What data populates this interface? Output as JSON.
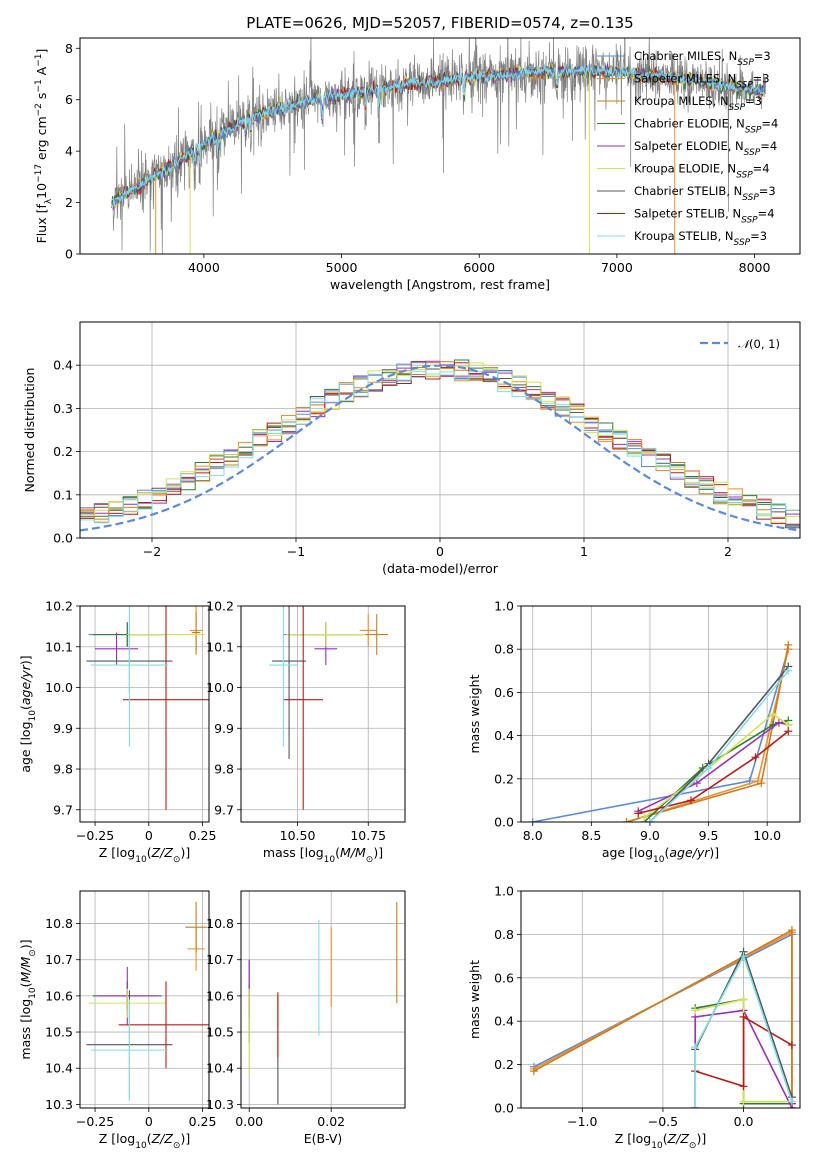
{
  "title": "PLATE=0626, MJD=52057, FIBERID=0574, z=0.135",
  "models": [
    {
      "name": "Chabrier MILES",
      "nssp": "3",
      "color": "#5d8ad8"
    },
    {
      "name": "Salpeter MILES",
      "nssp": "3",
      "color": "#f28e2b"
    },
    {
      "name": "Kroupa MILES",
      "nssp": "3",
      "color": "#c87e1e"
    },
    {
      "name": "Chabrier ELODIE",
      "nssp": "4",
      "color": "#2e7d32"
    },
    {
      "name": "Salpeter ELODIE",
      "nssp": "4",
      "color": "#9b30b0"
    },
    {
      "name": "Kroupa ELODIE",
      "nssp": "4",
      "color": "#d4e157"
    },
    {
      "name": "Chabrier STELIB",
      "nssp": "3",
      "color": "#555555"
    },
    {
      "name": "Salpeter STELIB",
      "nssp": "4",
      "color": "#b71c1c"
    },
    {
      "name": "Kroupa STELIB",
      "nssp": "3",
      "color": "#80deea"
    }
  ],
  "chart_data": [
    {
      "id": "spectrum",
      "type": "line",
      "xlabel": "wavelength [Angstrom, rest frame]",
      "ylabel": "Flux [f_λ 10^-17 erg cm^-2 s^-1 A^-1]",
      "xlim": [
        3100,
        8330
      ],
      "ylim": [
        0,
        8.4
      ],
      "xticks": [
        4000,
        5000,
        6000,
        7000,
        8000
      ],
      "yticks": [
        0,
        2,
        4,
        6,
        8
      ],
      "legend": "top-right",
      "grid": false,
      "data_x_range": [
        3330,
        8080
      ],
      "continuum": [
        [
          3330,
          2.0
        ],
        [
          3600,
          2.9
        ],
        [
          3900,
          3.9
        ],
        [
          4000,
          4.3
        ],
        [
          4300,
          5.2
        ],
        [
          4500,
          5.6
        ],
        [
          5000,
          6.2
        ],
        [
          5500,
          6.6
        ],
        [
          6000,
          6.9
        ],
        [
          6500,
          7.1
        ],
        [
          7000,
          7.1
        ],
        [
          7500,
          6.8
        ],
        [
          8080,
          6.3
        ]
      ]
    },
    {
      "id": "residuals",
      "type": "step",
      "xlabel": "(data-model)/error",
      "ylabel": "Normed distribution",
      "xlim": [
        -2.5,
        2.5
      ],
      "ylim": [
        0,
        0.5
      ],
      "xticks": [
        -2,
        -1,
        0,
        1,
        2
      ],
      "yticks": [
        0.0,
        0.1,
        0.2,
        0.3,
        0.4
      ],
      "legend": "top-right",
      "grid": true,
      "reference": {
        "label": "N(0,1)",
        "mean": 0,
        "sigma": 1
      }
    },
    {
      "id": "age_vs_Z",
      "type": "errorbar",
      "xlabel": "Z [log10(Z/Z⊙)]",
      "ylabel": "age [log10(age/yr)]",
      "xlim": [
        -0.32,
        0.28
      ],
      "ylim": [
        9.67,
        10.2
      ],
      "xticks": [
        -0.25,
        0.0,
        0.25
      ],
      "yticks": [
        9.7,
        9.8,
        9.9,
        10.0,
        10.1,
        10.2
      ],
      "grid": true,
      "points": [
        {
          "x": -0.1,
          "y": 10.13,
          "xerr": 0.18,
          "yerr": 0.03
        },
        {
          "x": 0.22,
          "y": 10.14,
          "xerr": 0.03,
          "yerr": 0.06
        },
        {
          "x": 0.22,
          "y": 10.135,
          "xerr": 0.02,
          "yerr": 0.05
        },
        {
          "x": -0.1,
          "y": 10.13,
          "xerr": 0.16,
          "yerr": 0.03
        },
        {
          "x": -0.15,
          "y": 10.095,
          "xerr": 0.1,
          "yerr": 0.04
        },
        {
          "x": 0.08,
          "y": 10.13,
          "xerr": 0.18,
          "yerr": 0.03
        },
        {
          "x": -0.09,
          "y": 10.065,
          "xerr": 0.2,
          "yerr": 0.08
        },
        {
          "x": 0.08,
          "y": 9.97,
          "xerr": 0.2,
          "yerr": 0.27
        },
        {
          "x": -0.09,
          "y": 10.055,
          "xerr": 0.18,
          "yerr": 0.2
        }
      ]
    },
    {
      "id": "age_vs_mass",
      "type": "errorbar",
      "xlabel": "mass [log10(M/M⊙)]",
      "ylabel": "",
      "xlim": [
        10.3,
        10.88
      ],
      "ylim": [
        9.67,
        10.2
      ],
      "xticks": [
        10.5,
        10.75
      ],
      "yticks": [
        9.7,
        9.8,
        9.9,
        10.0,
        10.1,
        10.2
      ],
      "grid": true,
      "points": [
        {
          "x": 10.6,
          "y": 10.13,
          "xerr": 0.15,
          "yerr": 0.03
        },
        {
          "x": 10.75,
          "y": 10.14,
          "xerr": 0.03,
          "yerr": 0.04
        },
        {
          "x": 10.78,
          "y": 10.13,
          "xerr": 0.04,
          "yerr": 0.05
        },
        {
          "x": 10.6,
          "y": 10.13,
          "xerr": 0.13,
          "yerr": 0.03
        },
        {
          "x": 10.6,
          "y": 10.095,
          "xerr": 0.04,
          "yerr": 0.04
        },
        {
          "x": 10.6,
          "y": 10.13,
          "xerr": 0.14,
          "yerr": 0.03
        },
        {
          "x": 10.47,
          "y": 10.065,
          "xerr": 0.06,
          "yerr": 0.24
        },
        {
          "x": 10.52,
          "y": 9.97,
          "xerr": 0.07,
          "yerr": 0.27
        },
        {
          "x": 10.45,
          "y": 10.055,
          "xerr": 0.05,
          "yerr": 0.2
        }
      ]
    },
    {
      "id": "massweight_vs_age",
      "type": "line",
      "xlabel": "age [log10(age/yr)]",
      "ylabel": "mass weight",
      "xlim": [
        7.9,
        10.28
      ],
      "ylim": [
        0,
        1
      ],
      "xticks": [
        8.0,
        8.5,
        9.0,
        9.5,
        10.0
      ],
      "yticks": [
        0.0,
        0.2,
        0.4,
        0.6,
        0.8,
        1.0
      ],
      "grid": true,
      "series": [
        {
          "x": [
            8.0,
            9.85,
            10.18
          ],
          "y": [
            0.0,
            0.19,
            0.8
          ]
        },
        {
          "x": [
            8.8,
            9.92,
            10.18
          ],
          "y": [
            0.0,
            0.19,
            0.8
          ]
        },
        {
          "x": [
            8.8,
            9.95,
            10.18
          ],
          "y": [
            0.0,
            0.18,
            0.82
          ]
        },
        {
          "x": [
            8.95,
            9.45,
            10.05,
            10.18
          ],
          "y": [
            0.0,
            0.25,
            0.45,
            0.47
          ]
        },
        {
          "x": [
            8.9,
            9.4,
            10.1,
            10.18
          ],
          "y": [
            0.05,
            0.18,
            0.46,
            0.45
          ]
        },
        {
          "x": [
            8.95,
            9.5,
            10.05,
            10.18
          ],
          "y": [
            0.02,
            0.25,
            0.5,
            0.45
          ]
        },
        {
          "x": [
            9.0,
            9.5,
            10.18
          ],
          "y": [
            0.0,
            0.27,
            0.72
          ]
        },
        {
          "x": [
            8.9,
            9.35,
            9.9,
            10.18
          ],
          "y": [
            0.04,
            0.1,
            0.3,
            0.42
          ]
        },
        {
          "x": [
            9.0,
            9.5,
            10.18
          ],
          "y": [
            0.0,
            0.25,
            0.7
          ]
        }
      ]
    },
    {
      "id": "mass_vs_Z",
      "type": "errorbar",
      "xlabel": "Z [log10(Z/Z⊙)]",
      "ylabel": "mass [log10(M/M⊙)]",
      "xlim": [
        -0.32,
        0.28
      ],
      "ylim": [
        10.29,
        10.89
      ],
      "xticks": [
        -0.25,
        0.0,
        0.25
      ],
      "yticks": [
        10.3,
        10.4,
        10.5,
        10.6,
        10.7,
        10.8
      ],
      "grid": true,
      "points": [
        {
          "x": -0.1,
          "y": 10.6,
          "xerr": 0.16,
          "yerr": 0.04
        },
        {
          "x": 0.22,
          "y": 10.73,
          "xerr": 0.04,
          "yerr": 0.06
        },
        {
          "x": 0.22,
          "y": 10.79,
          "xerr": 0.05,
          "yerr": 0.07
        },
        {
          "x": -0.1,
          "y": 10.6,
          "xerr": 0.16,
          "yerr": 0.04
        },
        {
          "x": -0.1,
          "y": 10.6,
          "xerr": 0.14,
          "yerr": 0.08
        },
        {
          "x": -0.1,
          "y": 10.58,
          "xerr": 0.18,
          "yerr": 0.04
        },
        {
          "x": -0.09,
          "y": 10.465,
          "xerr": 0.2,
          "yerr": 0.15
        },
        {
          "x": 0.08,
          "y": 10.52,
          "xerr": 0.22,
          "yerr": 0.12
        },
        {
          "x": -0.09,
          "y": 10.45,
          "xerr": 0.18,
          "yerr": 0.14
        }
      ]
    },
    {
      "id": "mass_vs_EBV",
      "type": "errorbar",
      "xlabel": "E(B-V)",
      "ylabel": "",
      "xlim": [
        -0.002,
        0.038
      ],
      "ylim": [
        10.29,
        10.89
      ],
      "xticks": [
        0.0,
        0.02
      ],
      "yticks": [
        10.3,
        10.4,
        10.5,
        10.6,
        10.7,
        10.8
      ],
      "grid": true,
      "points": [
        {
          "x": 0.0,
          "y": 10.62,
          "xerr": 0.0,
          "yerr": 0.08
        },
        {
          "x": 0.02,
          "y": 10.68,
          "xerr": 0.0,
          "yerr": 0.11
        },
        {
          "x": 0.036,
          "y": 10.72,
          "xerr": 0.0,
          "yerr": 0.14
        },
        {
          "x": 0.0,
          "y": 10.55,
          "xerr": 0.0,
          "yerr": 0.08
        },
        {
          "x": 0.0,
          "y": 10.62,
          "xerr": 0.0,
          "yerr": 0.08
        },
        {
          "x": 0.0,
          "y": 10.5,
          "xerr": 0.0,
          "yerr": 0.12
        },
        {
          "x": 0.007,
          "y": 10.45,
          "xerr": 0.0,
          "yerr": 0.15
        },
        {
          "x": 0.007,
          "y": 10.52,
          "xerr": 0.0,
          "yerr": 0.09
        },
        {
          "x": 0.017,
          "y": 10.65,
          "xerr": 0.0,
          "yerr": 0.16
        }
      ]
    },
    {
      "id": "massweight_vs_Z",
      "type": "line",
      "xlabel": "Z [log10(Z/Z⊙)]",
      "ylabel": "mass weight",
      "xlim": [
        -1.38,
        0.35
      ],
      "ylim": [
        0,
        1
      ],
      "xticks": [
        -1.0,
        -0.5,
        0.0
      ],
      "yticks": [
        0.0,
        0.2,
        0.4,
        0.6,
        0.8,
        1.0
      ],
      "grid": true,
      "series": [
        {
          "x": [
            -1.3,
            0.3,
            0.3
          ],
          "y": [
            0.19,
            0.8,
            0.0
          ]
        },
        {
          "x": [
            -1.3,
            0.3,
            0.3
          ],
          "y": [
            0.18,
            0.81,
            0.0
          ]
        },
        {
          "x": [
            -1.3,
            0.3,
            0.3
          ],
          "y": [
            0.17,
            0.82,
            0.0
          ]
        },
        {
          "x": [
            -0.3,
            0.0,
            0.0,
            0.3
          ],
          "y": [
            0.46,
            0.5,
            0.02,
            0.02
          ]
        },
        {
          "x": [
            -0.3,
            -0.3,
            0.0,
            0.3,
            0.3
          ],
          "y": [
            0.0,
            0.42,
            0.45,
            0.0,
            0.02
          ]
        },
        {
          "x": [
            -0.3,
            0.0,
            0.0,
            0.3
          ],
          "y": [
            0.45,
            0.5,
            0.03,
            0.03
          ]
        },
        {
          "x": [
            -0.3,
            -0.3,
            0.0,
            0.3
          ],
          "y": [
            0.0,
            0.27,
            0.72,
            0.05
          ]
        },
        {
          "x": [
            -0.3,
            0.0,
            0.0,
            0.3
          ],
          "y": [
            0.17,
            0.1,
            0.42,
            0.29
          ]
        },
        {
          "x": [
            -0.3,
            -0.3,
            0.0,
            0.3
          ],
          "y": [
            0.0,
            0.28,
            0.7,
            0.03
          ]
        }
      ]
    }
  ]
}
